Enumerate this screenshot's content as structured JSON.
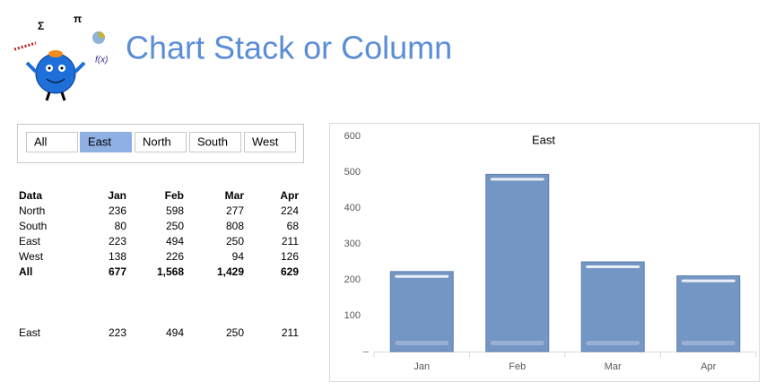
{
  "header": {
    "title": "Chart Stack or Column"
  },
  "logo": {
    "symbols": [
      "Σ",
      "π",
      "f(x)"
    ]
  },
  "buttons": {
    "labels": [
      "All",
      "East",
      "North",
      "South",
      "West"
    ],
    "selected": 1
  },
  "table": {
    "header": [
      "Data",
      "Jan",
      "Feb",
      "Mar",
      "Apr"
    ],
    "rows": [
      [
        "North",
        236,
        598,
        277,
        224
      ],
      [
        "South",
        80,
        250,
        808,
        68
      ],
      [
        "East",
        223,
        494,
        250,
        211
      ],
      [
        "West",
        138,
        226,
        94,
        126
      ],
      [
        "All",
        "677",
        "1,568",
        "1,429",
        "629"
      ]
    ],
    "bold_rows": [
      4
    ]
  },
  "selection": {
    "label": "East",
    "values": [
      223,
      494,
      250,
      211
    ]
  },
  "chart_data": {
    "type": "bar",
    "title": "East",
    "categories": [
      "Jan",
      "Feb",
      "Mar",
      "Apr"
    ],
    "values": [
      223,
      494,
      250,
      211
    ],
    "color": "#7496c4",
    "ylim": [
      0,
      600
    ],
    "yticks": [
      100,
      200,
      300,
      400,
      500,
      600
    ],
    "grid": false
  }
}
